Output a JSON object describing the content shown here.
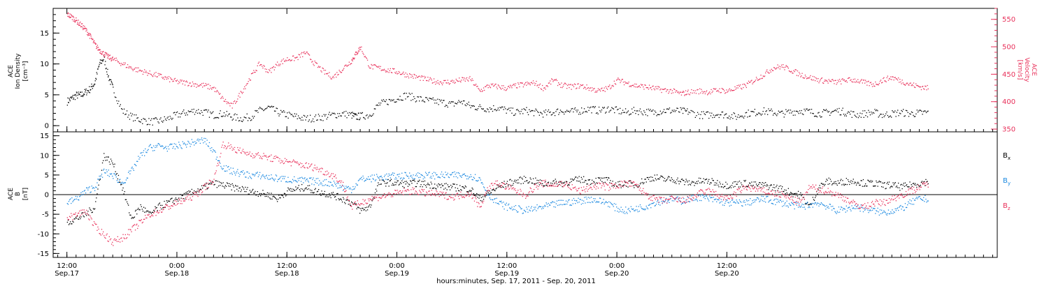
{
  "chart_data": [
    {
      "type": "scatter",
      "panel": "top",
      "ylabel_left": [
        "ACE",
        "Ion Density",
        "[cm⁻³]"
      ],
      "ylabel_right": [
        "ACE",
        "Velocity",
        "[km/s]"
      ],
      "ylim_left": [
        -1,
        19
      ],
      "ylim_right": [
        345,
        570
      ],
      "yticks_left": [
        "0",
        "5",
        "10",
        "15"
      ],
      "yticks_right": [
        "350",
        "400",
        "450",
        "500",
        "550"
      ],
      "grid": false,
      "colors": {
        "density": "#000000",
        "velocity": "#e8305a"
      },
      "series": [
        {
          "key": "density",
          "axis": "left",
          "color": "#000000",
          "x": [
            0,
            0.5,
            1,
            1.5,
            2,
            2.5,
            3,
            3.5,
            4,
            4.5,
            5,
            6,
            7,
            8,
            9,
            10,
            11,
            12,
            13,
            14,
            15,
            16,
            17,
            18,
            19,
            20,
            21,
            22,
            23,
            24,
            25,
            26,
            27,
            28,
            29,
            30,
            31,
            31.5,
            32,
            33,
            34,
            35,
            36,
            37,
            38,
            39,
            40,
            41,
            42,
            43,
            44,
            45,
            46,
            47,
            48,
            49,
            50,
            51,
            52,
            53,
            54,
            55,
            56,
            57,
            58,
            59,
            60,
            61,
            62,
            63,
            64,
            65,
            66,
            67,
            67.8,
            69,
            70,
            71,
            72,
            73,
            74,
            75,
            76,
            77,
            78,
            79,
            80,
            81,
            82,
            83,
            84,
            85,
            86,
            87,
            88,
            89,
            90,
            91,
            92,
            93,
            94
          ],
          "y": [
            4,
            4.5,
            5,
            5,
            5.5,
            6,
            7,
            10,
            11,
            8,
            6,
            2.5,
            1.5,
            1,
            0.7,
            0.8,
            1.2,
            1.8,
            2.2,
            2.5,
            2.2,
            1.8,
            2,
            1.5,
            1.2,
            1.5,
            2.5,
            3,
            2.2,
            1.8,
            1.5,
            1.2,
            1.3,
            1.5,
            1.8,
            2.0,
            1.8,
            1.5,
            1.6,
            1.8,
            3.5,
            4,
            4.5,
            5,
            4.5,
            4.2,
            4,
            3.8,
            3.5,
            4,
            3.2,
            3,
            2.8,
            3,
            2.5,
            2.2,
            2.5,
            2.2,
            2,
            2.2,
            2.5,
            2.3,
            2.5,
            2.8,
            2.5,
            2.8,
            2.5,
            2.2,
            2.5,
            2.3,
            2.2,
            2.5,
            2.5,
            2.4,
            2.3,
            1.8,
            1.8,
            2,
            1.8,
            1.5,
            2,
            2.2,
            2.4,
            2.2,
            2.0,
            2.3,
            2.5,
            2.3,
            2.0,
            2.2,
            2.5,
            2.2,
            1.8,
            2.0,
            2.2,
            1.8,
            2.0,
            2.2,
            2.0,
            2.1,
            2.2
          ]
        },
        {
          "key": "velocity",
          "axis": "right",
          "color": "#e8305a",
          "x": [
            0,
            0.5,
            1,
            1.5,
            2,
            2.5,
            3,
            3.5,
            4,
            4.5,
            5,
            6,
            7,
            8,
            9,
            10,
            11,
            12,
            13,
            14,
            15,
            16,
            17,
            18,
            19,
            20,
            21,
            22,
            23,
            24,
            25,
            26,
            27,
            28,
            29,
            30,
            31,
            31.5,
            32,
            33,
            34,
            35,
            36,
            37,
            38,
            39,
            40,
            41,
            42,
            43,
            44,
            45,
            46,
            47,
            48,
            49,
            50,
            51,
            52,
            53,
            54,
            55,
            56,
            57,
            58,
            59,
            60,
            61,
            62,
            63,
            64,
            65,
            66,
            67,
            67.8,
            69,
            70,
            71,
            72,
            73,
            74,
            75,
            76,
            77,
            78,
            79,
            80,
            81,
            82,
            83,
            84,
            85,
            86,
            87,
            88,
            89,
            90,
            91,
            92,
            93,
            94
          ],
          "y": [
            560,
            555,
            548,
            540,
            532,
            520,
            505,
            495,
            488,
            482,
            478,
            470,
            462,
            457,
            452,
            448,
            442,
            437,
            435,
            432,
            430,
            425,
            405,
            392,
            418,
            445,
            470,
            455,
            470,
            478,
            480,
            490,
            470,
            455,
            445,
            460,
            475,
            488,
            500,
            465,
            462,
            458,
            455,
            450,
            446,
            442,
            438,
            436,
            437,
            440,
            442,
            420,
            430,
            428,
            425,
            430,
            432,
            435,
            425,
            440,
            430,
            428,
            430,
            425,
            420,
            425,
            440,
            435,
            430,
            428,
            425,
            422,
            420,
            415,
            418,
            420,
            418,
            422,
            420,
            425,
            430,
            440,
            450,
            462,
            465,
            458,
            450,
            445,
            440,
            438,
            436,
            440,
            440,
            435,
            432,
            440,
            445,
            438,
            432,
            428,
            425
          ]
        }
      ]
    },
    {
      "type": "scatter",
      "panel": "bottom",
      "ylabel_left": [
        "ACE",
        "B",
        "[nT]"
      ],
      "ylim_left": [
        -16,
        16
      ],
      "yticks_left": [
        "-15",
        "-10",
        "-5",
        "0",
        "5",
        "10",
        "15"
      ],
      "zero_line": true,
      "grid": false,
      "legend_placement": "right",
      "series": [
        {
          "key": "bx",
          "label_base": "B",
          "label_sub": "x",
          "color": "#000000",
          "x": [
            0,
            1,
            2,
            3,
            4,
            5,
            6,
            7,
            8,
            9,
            10,
            11,
            12,
            13,
            14,
            15,
            16,
            17,
            18,
            19,
            20,
            21,
            22,
            23,
            24,
            25,
            26,
            27,
            28,
            29,
            30,
            31,
            32,
            33,
            34,
            35,
            36,
            37,
            38,
            39,
            40,
            41,
            42,
            43,
            44,
            45,
            46,
            47,
            48,
            49,
            50,
            51,
            52,
            53,
            54,
            55,
            56,
            57,
            58,
            59,
            60,
            61,
            62,
            63,
            64,
            65,
            66,
            67,
            68,
            69,
            70,
            71,
            72,
            73,
            74,
            75,
            76,
            77,
            78,
            79,
            80,
            81,
            82,
            83,
            84,
            85,
            86,
            87,
            88,
            89,
            90,
            91,
            92,
            93,
            94
          ],
          "y": [
            -7,
            -6,
            -5,
            -3,
            10,
            8,
            2,
            -6,
            -3,
            -5,
            -3,
            -2,
            -1,
            0,
            1,
            2,
            3,
            2.5,
            2,
            1.5,
            1,
            0.5,
            0,
            -1,
            1,
            1.5,
            2,
            1,
            0.5,
            0,
            -1,
            -2,
            -4,
            -3,
            3,
            3.2,
            3.0,
            2.8,
            3.0,
            2.8,
            2.5,
            2.2,
            2.0,
            1.8,
            1.5,
            -1,
            0.5,
            2,
            3,
            3.5,
            4,
            3.5,
            2.8,
            3.2,
            3.0,
            3.5,
            4.0,
            3.5,
            3.8,
            3.6,
            2.5,
            3.0,
            2.5,
            3.8,
            4.5,
            4.0,
            4.0,
            3.5,
            3.0,
            3.5,
            3.5,
            3.0,
            2.5,
            2.8,
            3.0,
            2.5,
            2.5,
            2.0,
            1.5,
            0.5,
            0,
            -3,
            2,
            3.5,
            3.0,
            3.5,
            3.5,
            3.0,
            3.0,
            2.5,
            2.5,
            2.0,
            2.5,
            3.0,
            3.5
          ]
        },
        {
          "key": "by",
          "label_base": "B",
          "label_sub": "y",
          "color": "#1a88e0",
          "x": [
            0,
            1,
            2,
            3,
            4,
            5,
            6,
            7,
            8,
            9,
            10,
            11,
            12,
            13,
            14,
            15,
            16,
            17,
            18,
            19,
            20,
            21,
            22,
            23,
            24,
            25,
            26,
            27,
            28,
            29,
            30,
            31,
            32,
            33,
            34,
            35,
            36,
            37,
            38,
            39,
            40,
            41,
            42,
            43,
            44,
            45,
            46,
            47,
            48,
            49,
            50,
            51,
            52,
            53,
            54,
            55,
            56,
            57,
            58,
            59,
            60,
            61,
            62,
            63,
            64,
            65,
            66,
            67,
            68,
            69,
            70,
            71,
            72,
            73,
            74,
            75,
            76,
            77,
            78,
            79,
            80,
            81,
            82,
            83,
            84,
            85,
            86,
            87,
            88,
            89,
            90,
            91,
            92,
            93,
            94
          ],
          "y": [
            -2,
            -1,
            1,
            2,
            6,
            5,
            3,
            6,
            10,
            12,
            12.5,
            12,
            12.5,
            13,
            13.5,
            14,
            11,
            7,
            6,
            5.5,
            5,
            5,
            4.5,
            4.2,
            4.0,
            3.8,
            3.6,
            3.5,
            3.2,
            3.0,
            2.0,
            1.5,
            4,
            4.2,
            4.5,
            4.7,
            4.8,
            4.9,
            5.0,
            5.0,
            5.0,
            5.0,
            5.0,
            5.0,
            5.0,
            4.0,
            0,
            -2,
            -3,
            -3.5,
            -4,
            -3.5,
            -3.0,
            -2.5,
            -2.0,
            -1.8,
            -1.5,
            -1.0,
            -1.5,
            -2.0,
            -3.5,
            -4.0,
            -3.5,
            -3.0,
            -2.0,
            -1.5,
            -1.0,
            -1.5,
            -1.0,
            -0.5,
            -1.0,
            -1.5,
            -2.0,
            -2.0,
            -2.0,
            -1.5,
            -1.0,
            -1.5,
            -2.0,
            -2.5,
            -3.0,
            -2.5,
            -2.0,
            -3.0,
            -4.0,
            -3.5,
            -3.0,
            -3.5,
            -4.0,
            -4.5,
            -4.0,
            -3.5,
            -2.0,
            -1.0,
            -1.0
          ]
        },
        {
          "key": "bz",
          "label_base": "B",
          "label_sub": "z",
          "color": "#e8305a",
          "x": [
            0,
            1,
            2,
            3,
            4,
            5,
            6,
            7,
            8,
            9,
            10,
            11,
            12,
            13,
            14,
            15,
            16,
            17,
            18,
            19,
            20,
            21,
            22,
            23,
            24,
            25,
            26,
            27,
            28,
            29,
            30,
            31,
            32,
            33,
            34,
            35,
            36,
            37,
            38,
            39,
            40,
            41,
            42,
            43,
            44,
            45,
            46,
            47,
            48,
            49,
            50,
            51,
            52,
            53,
            54,
            55,
            56,
            57,
            58,
            59,
            60,
            61,
            62,
            63,
            64,
            65,
            66,
            67,
            68,
            69,
            70,
            71,
            72,
            73,
            74,
            75,
            76,
            77,
            78,
            79,
            80,
            81,
            82,
            83,
            84,
            85,
            86,
            87,
            88,
            89,
            90,
            91,
            92,
            93,
            94
          ],
          "y": [
            -6,
            -5,
            -4,
            -8,
            -10,
            -12,
            -11,
            -9,
            -7,
            -5,
            -4,
            -3,
            -2,
            -1,
            0,
            2,
            4,
            13,
            12,
            11,
            10.5,
            10,
            9.5,
            9,
            8.5,
            8,
            7.5,
            7,
            6,
            5,
            3,
            -3,
            -2,
            -1,
            -0.5,
            0,
            0.5,
            1.0,
            1.0,
            0.5,
            0.3,
            0.0,
            -0.5,
            0.0,
            0.5,
            -3,
            2,
            3,
            2,
            1,
            0,
            2,
            3,
            2.5,
            3.0,
            2.0,
            1.0,
            2.0,
            2.5,
            2.0,
            2.5,
            3.0,
            2.5,
            0.5,
            -1,
            -1.5,
            -1.0,
            -1.5,
            -1.0,
            0.5,
            1.0,
            0.0,
            -1.0,
            0.5,
            2.0,
            1.5,
            1.0,
            0.5,
            0.0,
            -1.0,
            -2.0,
            2.0,
            1.5,
            1.0,
            0.0,
            -1.0,
            -2.5,
            -3.0,
            -2.0,
            -2.0,
            -1.0,
            0.0,
            1.0,
            2.0,
            3.0
          ]
        }
      ]
    }
  ],
  "x_axis": {
    "range_hours": [
      -1.5,
      101.5
    ],
    "ticks": [
      {
        "hour": 0,
        "time": "12:00",
        "date": "Sep.17"
      },
      {
        "hour": 12,
        "time": "0:00",
        "date": "Sep.18"
      },
      {
        "hour": 24,
        "time": "12:00",
        "date": "Sep.18"
      },
      {
        "hour": 36,
        "time": "0:00",
        "date": "Sep.19"
      },
      {
        "hour": 48,
        "time": "12:00",
        "date": "Sep.19"
      },
      {
        "hour": 60,
        "time": "0:00",
        "date": "Sep.20"
      },
      {
        "hour": 72,
        "time": "12:00",
        "date": "Sep.20"
      }
    ],
    "title": "hours:minutes, Sep. 17, 2011 - Sep. 20, 2011"
  }
}
